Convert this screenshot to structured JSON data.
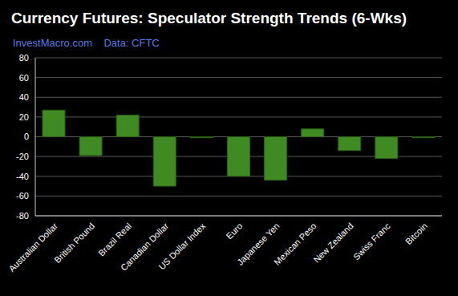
{
  "chart_data": {
    "type": "bar",
    "title": "Currency Futures: Speculator Strength Trends (6-Wks)",
    "subtitle": "InvestMacro.com    Data: CFTC",
    "categories": [
      "Australian Dollar",
      "British Pound",
      "Brazil Real",
      "Canadian Dollar",
      "US Dollar Index",
      "Euro",
      "Japanese Yen",
      "Mexican Peso",
      "New Zealand",
      "Swiss Franc",
      "Bitcoin"
    ],
    "values": [
      27,
      -19,
      22,
      -50,
      -1,
      -40,
      -44,
      8,
      -14,
      -22,
      -1
    ],
    "color": "#3f8a22",
    "ylim": [
      -80,
      80
    ],
    "yticks": [
      -80,
      -60,
      -40,
      -20,
      0,
      20,
      40,
      60,
      80
    ],
    "grid": true
  }
}
